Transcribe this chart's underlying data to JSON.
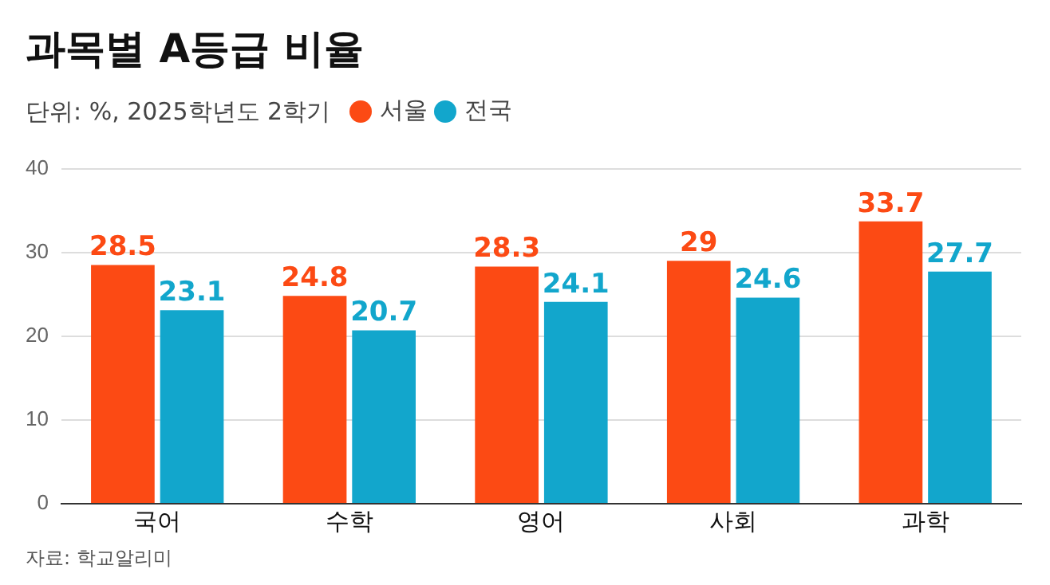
{
  "chart_data": {
    "type": "bar",
    "title": "과목별 A등급 비율",
    "subtitle": "단위: %, 2025학년도 2학기",
    "categories": [
      "국어",
      "수학",
      "영어",
      "사회",
      "과학"
    ],
    "series": [
      {
        "name": "서울",
        "color": "#fc4a14",
        "values": [
          28.5,
          24.8,
          28.3,
          29,
          33.7
        ]
      },
      {
        "name": "전국",
        "color": "#12a6cc",
        "values": [
          23.1,
          20.7,
          24.1,
          24.6,
          27.7
        ]
      }
    ],
    "ylim": [
      0,
      40
    ],
    "yticks": [
      0,
      10,
      20,
      30,
      40
    ],
    "grid": "y",
    "legend": "top left",
    "data_labels": true,
    "annotations": [
      "자료: 학교알리미"
    ]
  }
}
